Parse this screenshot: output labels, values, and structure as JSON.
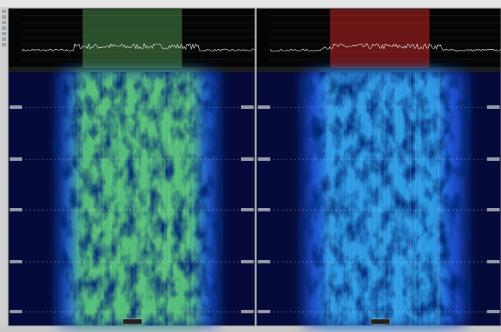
{
  "panels": [
    {
      "highlight_color": "#4a8a4a",
      "band_color": "#1e5ad8",
      "core_color": "#5fd06a"
    },
    {
      "highlight_color": "#c02424",
      "band_color": "#1a4fd0",
      "core_color": "#33a8e8"
    }
  ]
}
